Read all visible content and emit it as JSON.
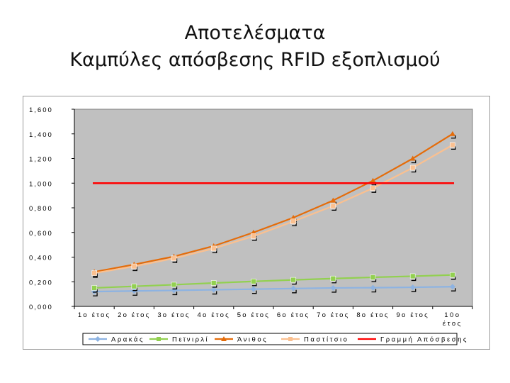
{
  "slide": {
    "title_line1": "Αποτελέσματα",
    "title_line2": "Καμπύλες απόσβεσης RFID εξοπλισμού"
  },
  "chart_data": {
    "type": "line",
    "title": "",
    "xlabel": "",
    "ylabel": "",
    "categories": [
      "1ο έτος",
      "2ο έτος",
      "3ο έτος",
      "4ο έτος",
      "5ο έτος",
      "6ο έτος",
      "7ο έτος",
      "8ο έτος",
      "9ο έτος",
      "10ο έτος"
    ],
    "y_ticks": [
      "1,600",
      "1,400",
      "1,200",
      "1,000",
      "0,800",
      "0,600",
      "0,400",
      "0,200",
      "0,000"
    ],
    "ylim": [
      0,
      1.6
    ],
    "grid": false,
    "legend_position": "bottom",
    "plot_background": "#c0c0c0",
    "series": [
      {
        "name": "Αρακάς",
        "color": "#8db3e2",
        "marker": "diamond",
        "values": [
          0.12,
          0.125,
          0.13,
          0.135,
          0.14,
          0.145,
          0.15,
          0.152,
          0.155,
          0.16
        ]
      },
      {
        "name": "Πεϊνιρλί",
        "color": "#92d050",
        "marker": "square",
        "values": [
          0.15,
          0.163,
          0.176,
          0.19,
          0.203,
          0.215,
          0.226,
          0.236,
          0.245,
          0.255
        ]
      },
      {
        "name": "Άνιθος",
        "color": "#e46c0a",
        "marker": "triangle",
        "values": [
          0.28,
          0.34,
          0.405,
          0.49,
          0.6,
          0.72,
          0.86,
          1.02,
          1.2,
          1.4
        ]
      },
      {
        "name": "Παστίτσιο",
        "color": "#fac090",
        "marker": "square",
        "values": [
          0.27,
          0.325,
          0.39,
          0.47,
          0.57,
          0.69,
          0.815,
          0.96,
          1.125,
          1.31
        ]
      },
      {
        "name": "Γραμμή Απόσβεσης",
        "color": "#ff0000",
        "marker": "none",
        "values": [
          1.0,
          1.0,
          1.0,
          1.0,
          1.0,
          1.0,
          1.0,
          1.0,
          1.0,
          1.0
        ]
      }
    ]
  }
}
